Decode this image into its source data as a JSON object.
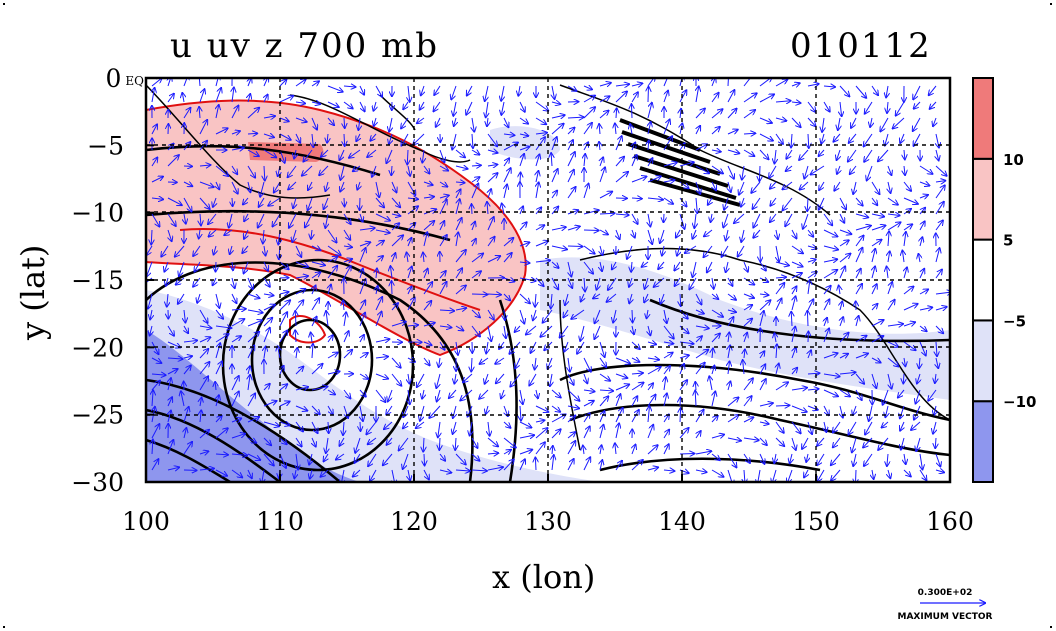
{
  "figure": {
    "title_left": "u uv z 700 mb",
    "title_right": "010112"
  },
  "chart_data": {
    "type": "heatmap",
    "title": "u uv z 700 mb",
    "subtitle": "010112",
    "xlabel": "x (lon)",
    "ylabel": "y (lat)",
    "xlim": [
      100,
      160
    ],
    "ylim": [
      -30,
      0
    ],
    "x_ticks": [
      100,
      110,
      120,
      130,
      140,
      150,
      160
    ],
    "y_ticks": [
      0,
      -5,
      -10,
      -15,
      -20,
      -25,
      -30
    ],
    "y_tick_labels": [
      "0 EQ",
      "−5",
      "−10",
      "−15",
      "−20",
      "−25",
      "−30"
    ],
    "grid": true,
    "colorbar": {
      "position": "right",
      "levels": [
        -10,
        -5,
        5,
        10
      ],
      "tick_labels": [
        "−10",
        "−5",
        "5",
        "10"
      ],
      "colors": [
        "#8e96ee",
        "#dfe2f8",
        "#ffffff",
        "#f9c4c4",
        "#ef7a7a"
      ]
    },
    "features": {
      "positive_u_band": "westerly band from 100E to 128E between 3S and 18S, max > 10 near 108E 6S",
      "negative_u_region": "easterly region southwest, 100E-125E, 18S-30S, min < -10",
      "geopotential_low_center": [
        112,
        -20
      ]
    },
    "vector_key": {
      "value": "0.300E+02",
      "label": "MAXIMUM VECTOR"
    }
  }
}
